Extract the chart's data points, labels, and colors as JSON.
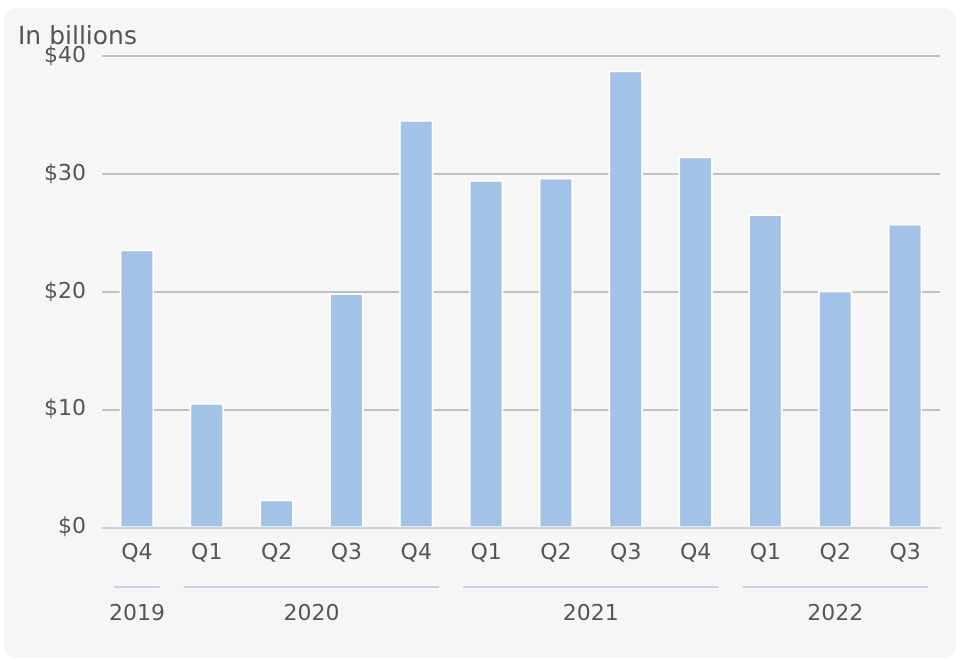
{
  "chart_data": {
    "type": "bar",
    "ylabel": "In billions",
    "categories": [
      "Q4",
      "Q1",
      "Q2",
      "Q3",
      "Q4",
      "Q1",
      "Q2",
      "Q3",
      "Q4",
      "Q1",
      "Q2",
      "Q3"
    ],
    "values": [
      23.6,
      10.6,
      2.4,
      19.9,
      34.6,
      29.5,
      29.7,
      38.8,
      31.5,
      26.6,
      20.1,
      25.8
    ],
    "color": "#a2c2e8",
    "ylim": [
      0,
      40
    ],
    "yticks": [
      {
        "value": 0,
        "label": "$0"
      },
      {
        "value": 10,
        "label": "$10"
      },
      {
        "value": 20,
        "label": "$20"
      },
      {
        "value": 30,
        "label": "$30"
      },
      {
        "value": 40,
        "label": "$40"
      }
    ],
    "grid": "y",
    "legend": false,
    "annotations": [
      "2019",
      "2020",
      "2021",
      "2022"
    ]
  }
}
